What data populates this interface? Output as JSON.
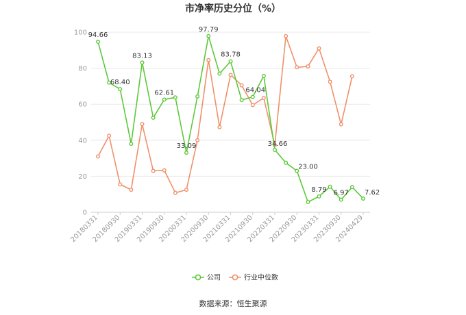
{
  "chart_data": {
    "type": "line",
    "title": "市净率历史分位（%）",
    "source": "数据来源：恒生聚源",
    "xlabel": "",
    "ylabel": "",
    "ylim": [
      0,
      100
    ],
    "yticks": [
      0,
      20,
      40,
      60,
      80,
      100
    ],
    "grid": true,
    "legend_position": "bottom",
    "x": [
      "20180331",
      "20180630",
      "20180930",
      "20181231",
      "20190331",
      "20190630",
      "20190930",
      "20191231",
      "20200331",
      "20200630",
      "20200930",
      "20201231",
      "20210331",
      "20210630",
      "20210930",
      "20211231",
      "20220331",
      "20220630",
      "20220930",
      "20221231",
      "20230331",
      "20230630",
      "20230930",
      "20231231",
      "20240429"
    ],
    "x_tick_labels": [
      "20180331",
      "20180930",
      "20190331",
      "20190930",
      "20200331",
      "20200930",
      "20210331",
      "20210930",
      "20220331",
      "20220930",
      "20230331",
      "20230930",
      "20240429"
    ],
    "series": [
      {
        "name": "公司",
        "color": "#5cc93a",
        "values": [
          94.66,
          72,
          68.4,
          38,
          83.13,
          52.5,
          62.61,
          63.8,
          33.09,
          64.3,
          97.79,
          77,
          83.78,
          62.3,
          64.04,
          75.7,
          34.66,
          27.5,
          23.0,
          5.7,
          8.79,
          14.2,
          6.97,
          14,
          7.62
        ],
        "data_labels": [
          {
            "index": 0,
            "text": "94.66"
          },
          {
            "index": 2,
            "text": "68.40"
          },
          {
            "index": 4,
            "text": "83.13"
          },
          {
            "index": 6,
            "text": "62.61"
          },
          {
            "index": 8,
            "text": "33.09"
          },
          {
            "index": 10,
            "text": "97.79"
          },
          {
            "index": 12,
            "text": "83.78"
          },
          {
            "index": 14,
            "text": "64.04"
          },
          {
            "index": 16,
            "text": "34.66"
          },
          {
            "index": 18,
            "text": "23.00"
          },
          {
            "index": 20,
            "text": "8.79"
          },
          {
            "index": 22,
            "text": "6.97"
          },
          {
            "index": 24,
            "text": "7.62"
          }
        ]
      },
      {
        "name": "行业中位数",
        "color": "#f0906a",
        "values": [
          31,
          42.5,
          15.5,
          12.5,
          49,
          23,
          23.3,
          10.8,
          12.5,
          40,
          84.5,
          47.3,
          76.3,
          70.5,
          59.5,
          63.5,
          37.3,
          97.8,
          80.5,
          81,
          91,
          72.5,
          48.8,
          75.5,
          null
        ]
      }
    ]
  }
}
